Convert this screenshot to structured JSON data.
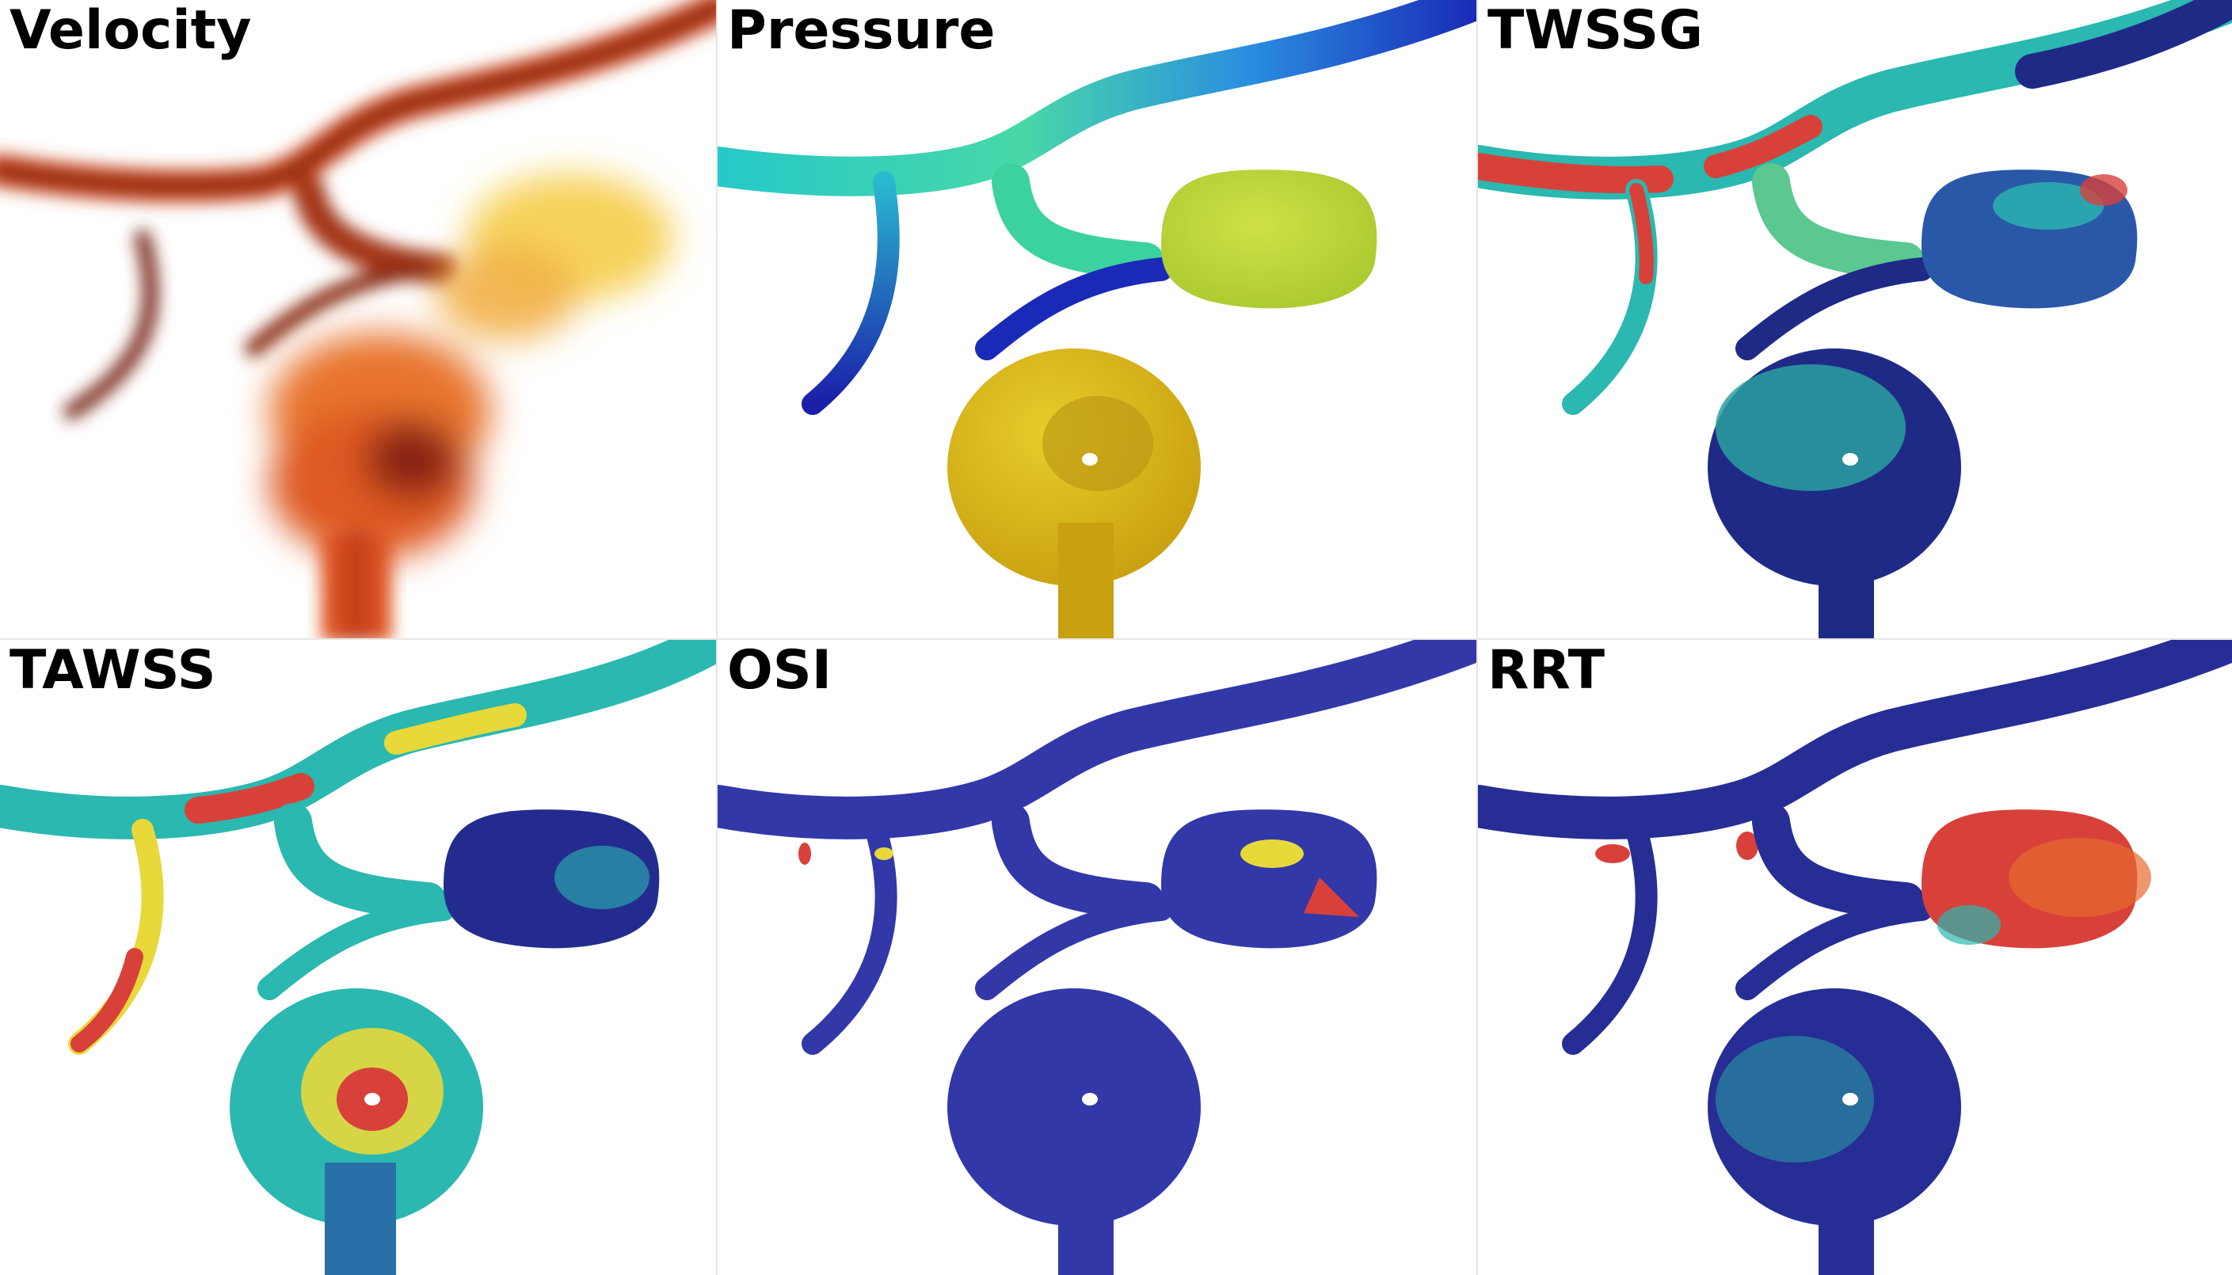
{
  "panels": [
    {
      "id": "velocity",
      "title": "Velocity",
      "colors": {
        "vessel": "#c8401e",
        "dark": "#6a1a10",
        "glow": "#f7e07a"
      }
    },
    {
      "id": "pressure",
      "title": "Pressure",
      "colors": {
        "low": "#1a2bb8",
        "mid": "#3fd2c0",
        "high": "#d8d23a",
        "aneurysm": "#c7d93a"
      }
    },
    {
      "id": "twssg",
      "title": "TWSSG",
      "colors": {
        "base": "#1f2a86",
        "hot": "#d8413a",
        "warm": "#e8d83a",
        "cool": "#2ab8b0"
      }
    },
    {
      "id": "tawss",
      "title": "TAWSS",
      "colors": {
        "base": "#232c8e",
        "hot": "#d8413a",
        "warm": "#e8d83a",
        "cool": "#2ab8b0"
      }
    },
    {
      "id": "osi",
      "title": "OSI",
      "colors": {
        "base": "#3238a8",
        "hot": "#d8413a",
        "warm": "#e8d83a",
        "cool": "#2ab8b0"
      }
    },
    {
      "id": "rrt",
      "title": "RRT",
      "colors": {
        "base": "#262d94",
        "hot": "#d8413a",
        "warm": "#e8d83a",
        "cool": "#2ab8b0"
      }
    }
  ]
}
